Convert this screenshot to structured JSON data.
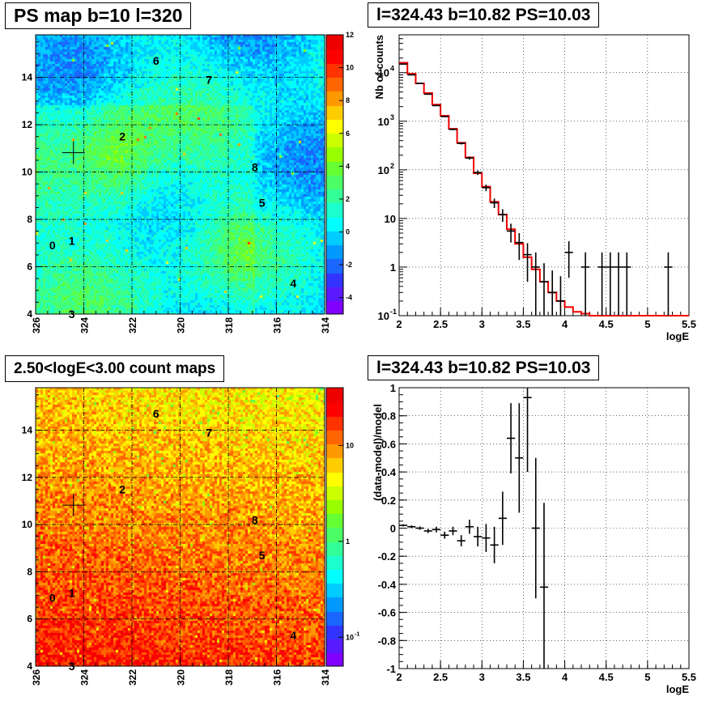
{
  "chart_data": [
    {
      "type": "heatmap",
      "title": "PS map b=10 l=320",
      "x_ticks": [
        "326",
        "324",
        "322",
        "320",
        "318",
        "316",
        "314"
      ],
      "y_ticks": [
        "4",
        "6",
        "8",
        "10",
        "12",
        "14"
      ],
      "xlim": [
        326,
        314
      ],
      "ylim": [
        4,
        15.8
      ],
      "colorbar_ticks": [
        "12",
        "10",
        "8",
        "6",
        "4",
        "2",
        "0",
        "-2",
        "-4"
      ],
      "colorbar_range": [
        -5,
        12
      ],
      "colormap": "rainbow",
      "cross": {
        "l": 324.43,
        "b": 10.82
      },
      "sources": [
        {
          "label": "0",
          "l": 325.3,
          "b": 6.9
        },
        {
          "label": "1",
          "l": 324.5,
          "b": 7.1
        },
        {
          "label": "2",
          "l": 322.4,
          "b": 11.5
        },
        {
          "label": "3",
          "l": 324.5,
          "b": 4.0
        },
        {
          "label": "4",
          "l": 315.3,
          "b": 5.3
        },
        {
          "label": "5",
          "l": 316.6,
          "b": 8.7
        },
        {
          "label": "6",
          "l": 321.0,
          "b": 14.7
        },
        {
          "label": "7",
          "l": 318.8,
          "b": 13.9
        },
        {
          "label": "8",
          "l": 316.9,
          "b": 10.2
        }
      ]
    },
    {
      "type": "line",
      "title": "l=324.43 b=10.82 PS=10.03",
      "xlabel": "logE",
      "ylabel": "Nb of counts",
      "xlim": [
        2,
        5.5
      ],
      "ylim": [
        0.1,
        60000
      ],
      "yscale": "log",
      "grid": true,
      "x_ticks": [
        "2",
        "2.5",
        "3",
        "3.5",
        "4",
        "4.5",
        "5",
        "5.5"
      ],
      "y_ticks": [
        {
          "value": 10000,
          "base": "10",
          "exp": "4"
        },
        {
          "value": 1000,
          "base": "10",
          "exp": "3"
        },
        {
          "value": 100,
          "base": "10",
          "exp": "2"
        },
        {
          "value": 10,
          "base": "10",
          "exp": ""
        },
        {
          "value": 1,
          "base": "1",
          "exp": ""
        },
        {
          "value": 0.1,
          "base": "10",
          "exp": "-1"
        }
      ],
      "model_color": "#ee0000",
      "model": {
        "edges": [
          2.0,
          2.1,
          2.2,
          2.3,
          2.4,
          2.5,
          2.6,
          2.7,
          2.8,
          2.9,
          3.0,
          3.1,
          3.2,
          3.3,
          3.4,
          3.5,
          3.6,
          3.7,
          3.8,
          3.9,
          4.0,
          4.1,
          4.2,
          4.3,
          4.4,
          4.5,
          4.6,
          4.7,
          4.8,
          4.9,
          5.0,
          5.1,
          5.2,
          5.3,
          5.4,
          5.5
        ],
        "values": [
          16000,
          9500,
          6000,
          3800,
          2200,
          1300,
          700,
          360,
          180,
          85,
          45,
          22,
          12,
          6,
          3,
          1.6,
          0.9,
          0.5,
          0.3,
          0.2,
          0.15,
          0.12,
          0.11,
          0.1,
          0.1,
          0.1,
          0.1,
          0.1,
          0.1,
          0.1,
          0.1,
          0.1,
          0.1,
          0.1,
          0.1
        ]
      },
      "data": {
        "x": [
          2.05,
          2.15,
          2.25,
          2.35,
          2.45,
          2.55,
          2.65,
          2.75,
          2.85,
          2.95,
          3.05,
          3.15,
          3.25,
          3.35,
          3.45,
          3.55,
          3.65,
          3.75,
          3.85,
          3.95,
          4.05,
          4.25,
          4.45,
          4.55,
          4.65,
          4.75,
          5.25
        ],
        "y": [
          15000,
          9000,
          6000,
          3600,
          2100,
          1250,
          680,
          350,
          175,
          88,
          43,
          21,
          12,
          5.5,
          3.2,
          1.8,
          1,
          0.5,
          0.3,
          0.2,
          2,
          1,
          1,
          1,
          1,
          1,
          1
        ],
        "err": [
          120,
          95,
          77,
          60,
          46,
          35,
          26,
          19,
          13,
          9.4,
          6.6,
          4.6,
          3.5,
          2.3,
          1.8,
          1.3,
          1,
          0.7,
          0.55,
          0.45,
          1.4,
          1,
          1,
          1,
          1,
          1,
          1
        ]
      }
    },
    {
      "type": "heatmap",
      "title": "2.50<logE<3.00 count maps",
      "x_ticks": [
        "326",
        "324",
        "322",
        "320",
        "318",
        "316",
        "314"
      ],
      "y_ticks": [
        "4",
        "6",
        "8",
        "10",
        "12",
        "14"
      ],
      "xlim": [
        326,
        314
      ],
      "ylim": [
        4,
        15.8
      ],
      "colorbar_ticks": [
        {
          "value": 10,
          "label": "10",
          "exp": ""
        },
        {
          "value": 1,
          "label": "1",
          "exp": ""
        },
        {
          "value": 0.1,
          "label": "10",
          "exp": "-1"
        }
      ],
      "colorbar_range": [
        0.05,
        40
      ],
      "colorbar_scale": "log",
      "colormap": "rainbow",
      "cross": {
        "l": 324.43,
        "b": 10.82
      },
      "sources": [
        {
          "label": "0",
          "l": 325.3,
          "b": 6.9
        },
        {
          "label": "1",
          "l": 324.5,
          "b": 7.1
        },
        {
          "label": "2",
          "l": 322.4,
          "b": 11.5
        },
        {
          "label": "3",
          "l": 324.5,
          "b": 4.0
        },
        {
          "label": "4",
          "l": 315.3,
          "b": 5.3
        },
        {
          "label": "5",
          "l": 316.6,
          "b": 8.7
        },
        {
          "label": "6",
          "l": 321.0,
          "b": 14.7
        },
        {
          "label": "7",
          "l": 318.8,
          "b": 13.9
        },
        {
          "label": "8",
          "l": 316.9,
          "b": 10.2
        }
      ]
    },
    {
      "type": "scatter",
      "title": "l=324.43 b=10.82 PS=10.03",
      "xlabel": "logE",
      "ylabel": "(data-model)/model",
      "xlim": [
        2,
        5.5
      ],
      "ylim": [
        -1,
        1
      ],
      "grid": true,
      "x_ticks": [
        "2",
        "2.5",
        "3",
        "3.5",
        "4",
        "4.5",
        "5",
        "5.5"
      ],
      "y_ticks": [
        "1",
        "0.8",
        "0.6",
        "0.4",
        "0.2",
        "0",
        "-0.2",
        "-0.4",
        "-0.6",
        "-0.8",
        "-1"
      ],
      "data": {
        "x": [
          2.05,
          2.15,
          2.25,
          2.35,
          2.45,
          2.55,
          2.65,
          2.75,
          2.85,
          2.95,
          3.05,
          3.15,
          3.25,
          3.35,
          3.45,
          3.55,
          3.65,
          3.75
        ],
        "y": [
          0.02,
          0.01,
          0.0,
          -0.02,
          -0.01,
          -0.05,
          -0.02,
          -0.09,
          0.01,
          -0.06,
          -0.07,
          -0.12,
          0.07,
          0.64,
          0.5,
          0.93,
          0.0,
          -0.42
        ],
        "err": [
          0.008,
          0.01,
          0.012,
          0.015,
          0.02,
          0.025,
          0.03,
          0.04,
          0.05,
          0.07,
          0.1,
          0.13,
          0.19,
          0.25,
          0.39,
          0.53,
          0.5,
          0.6
        ]
      }
    }
  ]
}
